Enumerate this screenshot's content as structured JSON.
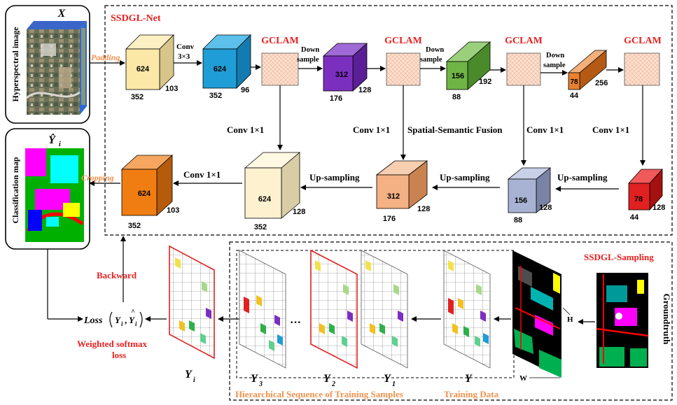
{
  "title": "SSDGL-Net",
  "sampling_title": "SSDGL-Sampling",
  "input": {
    "symbol": "X",
    "label": "Hyperspectral image",
    "padding": "Padding"
  },
  "output": {
    "symbol": "Ŷ",
    "subscript": "i",
    "label": "Classification map",
    "cropping": "Cropping"
  },
  "encoder": {
    "cube1": {
      "front": "624",
      "bottom": "352",
      "side": "103"
    },
    "conv_in": [
      "Conv",
      "3×3"
    ],
    "cube2": {
      "front": "624",
      "bottom": "352",
      "side": "96"
    },
    "gclam": "GCLAM",
    "downsample": [
      "Down",
      "sample"
    ],
    "cube3": {
      "front": "312",
      "bottom": "176",
      "side": "128"
    },
    "cube4": {
      "front": "156",
      "bottom": "88",
      "side": "192"
    },
    "cube5": {
      "front": "78",
      "bottom": "44",
      "side": "256"
    }
  },
  "middle": {
    "conv1": "Conv 1×1",
    "fusion": "Spatial-Semantic Fusion"
  },
  "decoder": {
    "cube_out": {
      "front": "624",
      "bottom": "352",
      "side": "103"
    },
    "cube_d1": {
      "front": "624",
      "bottom": "352",
      "side": "128"
    },
    "cube_d2": {
      "front": "312",
      "bottom": "176",
      "side": "128"
    },
    "cube_d3": {
      "front": "156",
      "bottom": "88",
      "side": "128"
    },
    "cube_d4": {
      "front": "78",
      "bottom": "44",
      "side": "128"
    },
    "conv1": "Conv 1×1",
    "upsampling": "Up-sampling"
  },
  "loss": {
    "backward": "Backward",
    "loss_word": "Loss",
    "y": "Y",
    "sub": "i",
    "weighted": [
      "Weighted softmax",
      "loss"
    ]
  },
  "sampling": {
    "yi": "Y",
    "yi_sub": "i",
    "y3": "Y",
    "y3_sub": "3",
    "y2": "Y",
    "y2_sub": "2",
    "y1": "Y",
    "y1_sub": "1",
    "y": "Y",
    "dots": "···",
    "hier_label": "Hierarchical Sequence of Training Samples",
    "training_label": "Training Data",
    "h": "H",
    "w": "W",
    "groundtruth": "Groundtruth"
  },
  "colors": {
    "red": "#e8201f",
    "orange": "#f0924c",
    "cube1": "#fbe7a6",
    "cube2": "#1f9dd6",
    "cube3": "#7b2fbf",
    "cube4": "#6fb546",
    "cube5": "#e8812f",
    "cube_out": "#ef7d11",
    "cube_d1": "#fdf1cf",
    "cube_d2": "#f4b183",
    "cube_d3": "#a8b3d3",
    "cube_d4": "#e12020"
  }
}
